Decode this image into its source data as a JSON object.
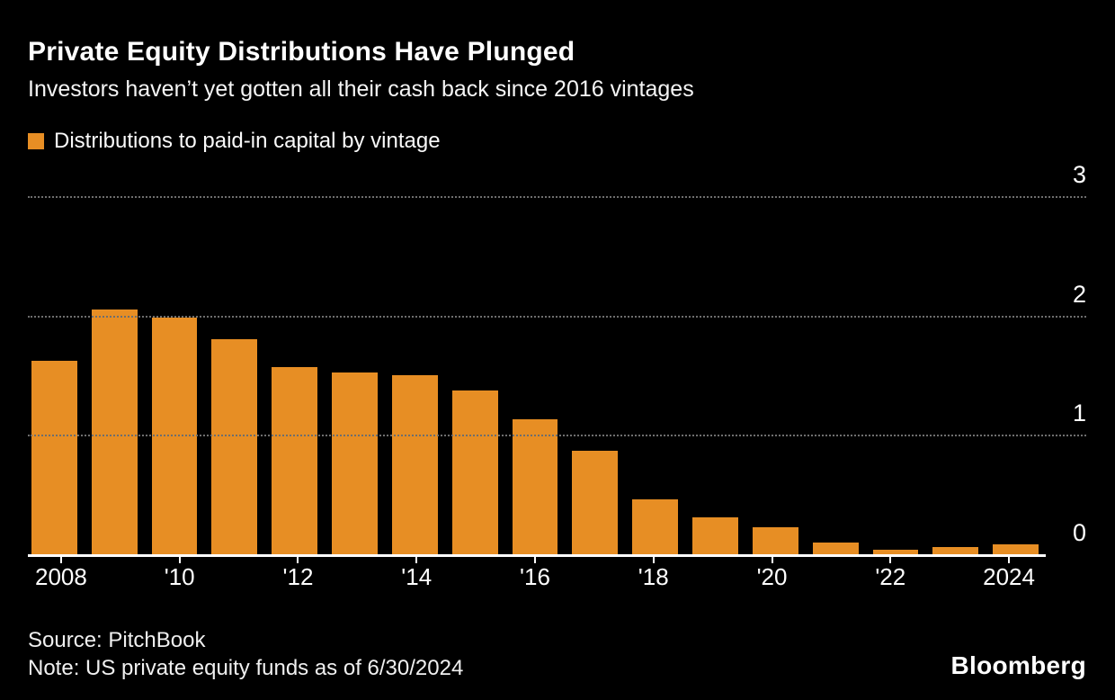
{
  "header": {
    "title": "Private Equity Distributions Have Plunged",
    "subtitle": "Investors haven’t yet gotten all their cash back since 2016 vintages"
  },
  "legend": {
    "label": "Distributions to paid-in capital by vintage",
    "swatch_color": "#E78E24"
  },
  "chart_data": {
    "type": "bar",
    "title": "Distributions to paid-in capital by vintage",
    "categories": [
      2008,
      2009,
      2010,
      2011,
      2012,
      2013,
      2014,
      2015,
      2016,
      2017,
      2018,
      2019,
      2020,
      2021,
      2022,
      2023,
      2024
    ],
    "values": [
      1.62,
      2.05,
      1.98,
      1.8,
      1.57,
      1.52,
      1.5,
      1.37,
      1.13,
      0.87,
      0.46,
      0.31,
      0.23,
      0.1,
      0.04,
      0.06,
      0.08
    ],
    "xlabel": "",
    "ylabel": "",
    "ylim": [
      0,
      3
    ],
    "yticks": [
      0,
      1,
      2,
      3
    ],
    "xtick_labels": [
      "2008",
      "'10",
      "'12",
      "'14",
      "'16",
      "'18",
      "'20",
      "'22",
      "2024"
    ],
    "xtick_positions": [
      0,
      2,
      4,
      6,
      8,
      10,
      12,
      14,
      16
    ],
    "bar_color": "#E78E24",
    "grid": "horizontal dotted",
    "gridline_color": "#6e6e6e",
    "legend_position": "top-left",
    "yaxis_side": "right"
  },
  "footer": {
    "source": "Source: PitchBook",
    "note": "Note: US private equity funds as of 6/30/2024",
    "logo": "Bloomberg"
  }
}
